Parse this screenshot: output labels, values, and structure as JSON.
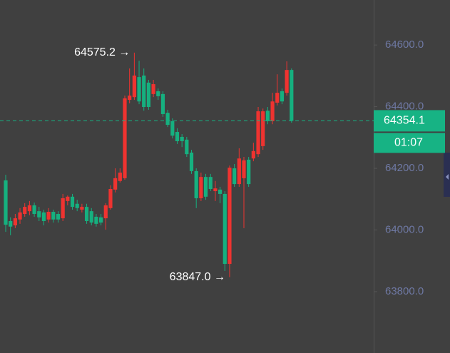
{
  "chart_data": {
    "type": "candlestick",
    "categories": [
      null,
      null,
      null,
      null,
      null,
      null,
      null,
      null,
      null,
      null,
      null,
      null,
      null,
      null,
      null,
      null,
      null,
      null,
      null,
      null,
      null,
      null,
      null,
      null,
      null,
      null,
      null,
      null,
      null,
      null,
      null,
      null,
      null,
      null,
      null,
      null,
      null,
      null,
      null,
      null,
      null,
      null,
      null,
      null,
      null,
      null,
      null,
      null,
      null,
      null,
      null,
      null,
      null,
      null,
      null,
      null,
      null,
      null,
      null,
      null,
      null
    ],
    "open": [
      64161,
      64029,
      64015,
      64034,
      64052,
      64061,
      64080,
      64061,
      64057,
      64034,
      64059,
      64052,
      64038,
      64094,
      64108,
      64085,
      64066,
      64075,
      64061,
      64043,
      64041,
      64038,
      64071,
      64131,
      64159,
      64168,
      64422,
      64431,
      64496,
      64501,
      64478,
      64441,
      64450,
      64441,
      64380,
      64353,
      64318,
      64302,
      64293,
      64251,
      64191,
      64103,
      64172,
      64172,
      64126,
      64131,
      64117,
      63890,
      64200,
      64149,
      64168,
      64228,
      64232,
      64246,
      64272,
      64387,
      64353,
      64413,
      64450,
      64445,
      64519
    ],
    "high": [
      64179,
      64041,
      64052,
      64071,
      64087,
      64094,
      64089,
      64075,
      64066,
      64071,
      64066,
      64061,
      64117,
      64112,
      64117,
      64098,
      64085,
      64085,
      64071,
      64052,
      64052,
      64087,
      64145,
      64200,
      64200,
      64436,
      64524,
      64575.2,
      64549,
      64524,
      64487,
      64487,
      64459,
      64450,
      64390,
      64362,
      64330,
      64311,
      64302,
      64260,
      64200,
      64186,
      64182,
      64182,
      64159,
      64140,
      64126,
      64209,
      64214,
      64265,
      64237,
      64237,
      64283,
      64399,
      64394,
      64399,
      64445,
      64505,
      64459,
      64547,
      64524
    ],
    "low": [
      63994,
      63983,
      64006,
      64020,
      64043,
      64048,
      64043,
      64029,
      64015,
      64024,
      64024,
      64024,
      64029,
      64080,
      64066,
      64061,
      64057,
      64020,
      64015,
      64011,
      64015,
      64001,
      64066,
      64122,
      64154,
      64163,
      64411,
      64422,
      64408,
      64387,
      64390,
      64431,
      64422,
      64367,
      64334,
      64297,
      64279,
      64269,
      64237,
      64182,
      64071,
      64094,
      64098,
      64126,
      64094,
      64087,
      63867,
      63847.0,
      64140,
      64140,
      64006,
      64140,
      64223,
      64237,
      64260,
      64343,
      64343,
      64404,
      64408,
      64436,
      64348
    ],
    "close": [
      64017,
      64011,
      64038,
      64057,
      64075,
      64080,
      64052,
      64041,
      64029,
      64059,
      64034,
      64034,
      64103,
      64108,
      64075,
      64071,
      64075,
      64029,
      64024,
      64020,
      64024,
      64080,
      64133,
      64168,
      64186,
      64427,
      64436,
      64501,
      64417,
      64399,
      64399,
      64473,
      64434,
      64376,
      64341,
      64306,
      64288,
      64288,
      64246,
      64191,
      64103,
      64172,
      64108,
      64133,
      64135,
      64117,
      63890,
      64202,
      64149,
      64232,
      64226,
      64149,
      64256,
      64385,
      64385,
      64353,
      64417,
      64445,
      64417,
      64519,
      64354.1
    ],
    "up_color": "#ef3330",
    "down_color": "#16b07f",
    "ylim": [
      63601,
      64746
    ],
    "yticks": [
      {
        "value": 63800,
        "label": "63800.0"
      },
      {
        "value": 64000,
        "label": "64000.0"
      },
      {
        "value": 64200,
        "label": "64200.0"
      },
      {
        "value": 64400,
        "label": "64400.0"
      },
      {
        "value": 64600,
        "label": "64600.0"
      }
    ],
    "annotations": [
      {
        "value": 64575.2,
        "label": "64575.2 →",
        "index": 27
      },
      {
        "value": 63847.0,
        "label": "63847.0 →",
        "index": 47
      }
    ],
    "last_price": 64354.1,
    "last_price_color": "#17b384",
    "countdown": "01:07"
  }
}
